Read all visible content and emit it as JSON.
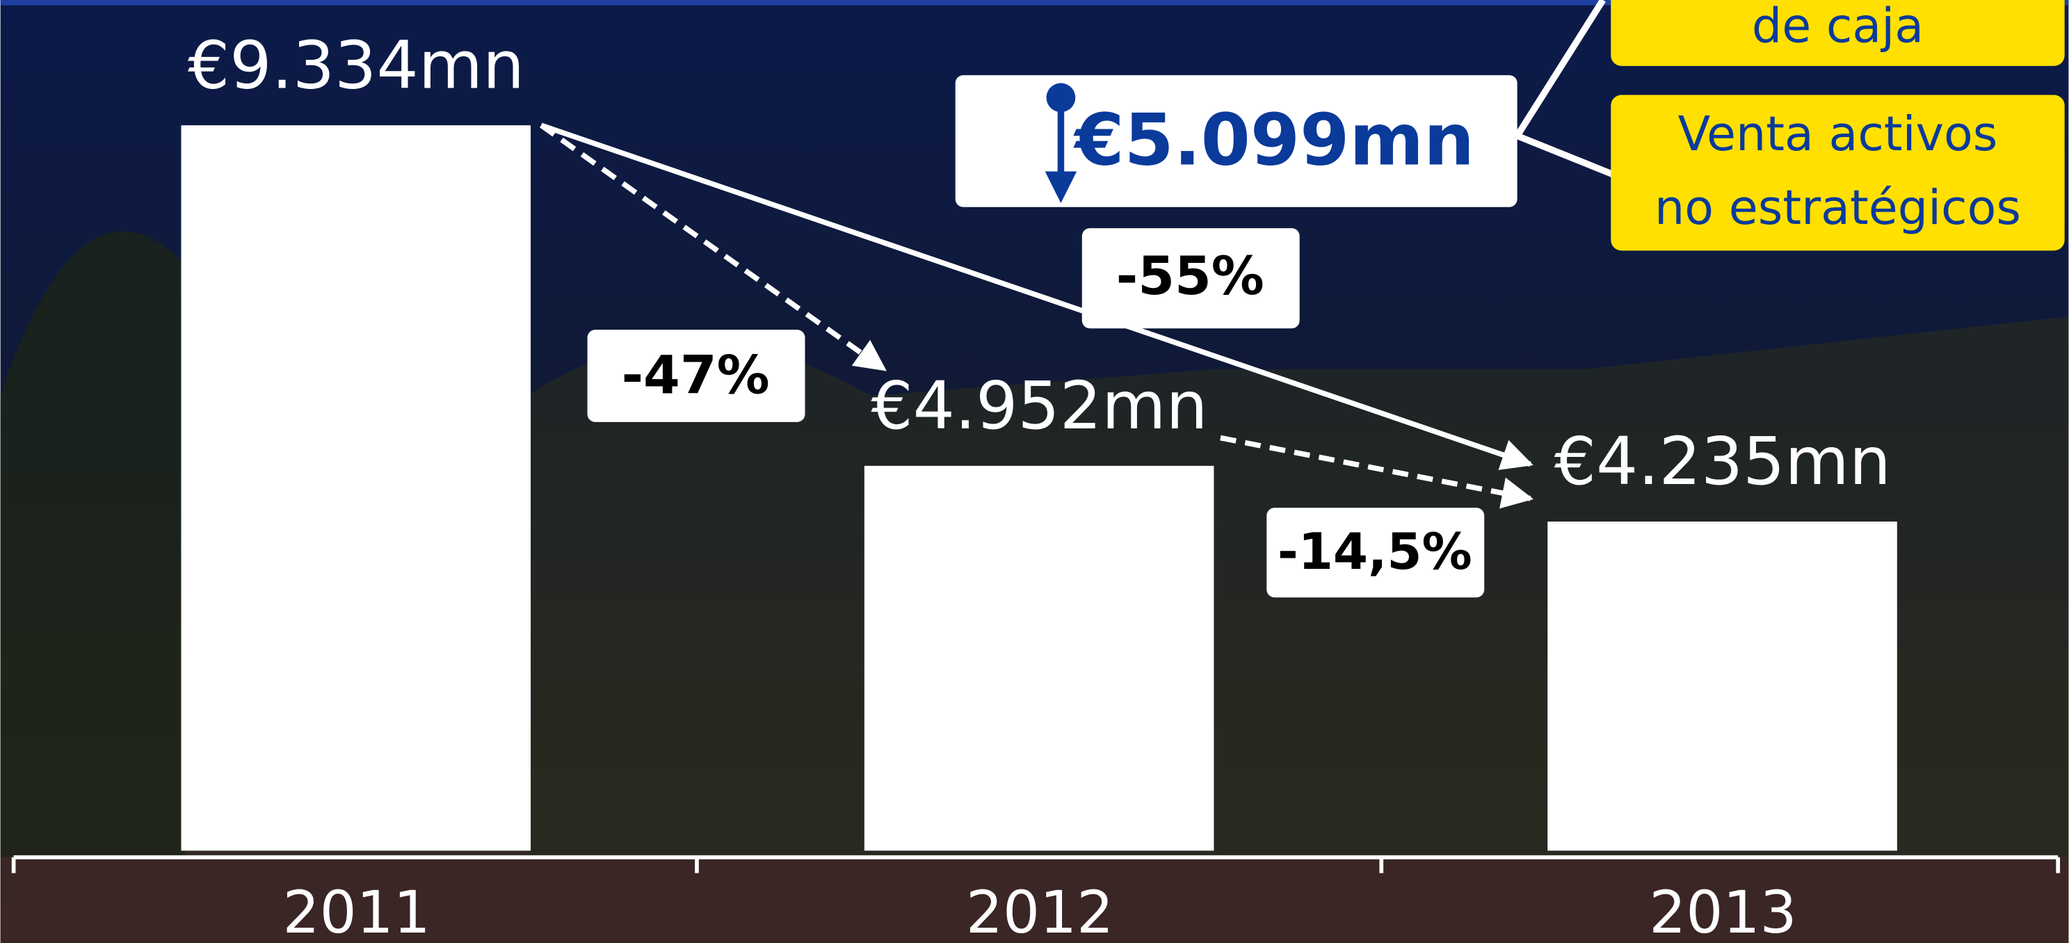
{
  "chart_data": {
    "type": "bar",
    "categories": [
      "2011",
      "2012",
      "2013"
    ],
    "values": [
      9334,
      4952,
      4235
    ],
    "value_labels": [
      "€9.334mn",
      "€4.952mn",
      "€4.235mn"
    ],
    "color": "#ffffff",
    "annotations": {
      "changes": [
        "-47%",
        "-55%",
        "-14,5%"
      ],
      "callout": "€5.099mn",
      "notes": [
        "de caja",
        "Venta activos",
        "no estratégicos"
      ]
    }
  }
}
